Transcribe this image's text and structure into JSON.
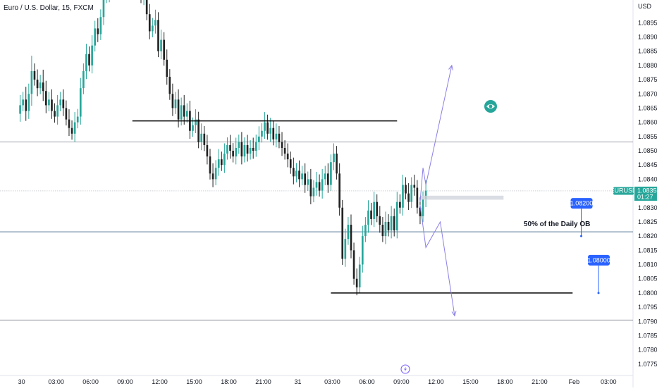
{
  "chart_title": "Euro / U.S. Dollar, 15, FXCM",
  "currency_label": "USD",
  "colors": {
    "up": "#26a69a",
    "down": "#222222",
    "arrow": "#8a7fe6",
    "accent": "#2962ff",
    "grid_line": "#787b86",
    "ticker_bg": "#26a69a",
    "eye": "#26a69a"
  },
  "icons": {
    "watch": "eye-icon",
    "bottom": "lightning-icon"
  },
  "chart_data": {
    "type": "candlestick",
    "title": "Euro / U.S. Dollar, 15, FXCM",
    "ylim": [
      1.0771,
      1.0903
    ],
    "y_ticks": [
      "1.08950",
      "1.08900",
      "1.08850",
      "1.08800",
      "1.08750",
      "1.08700",
      "1.08650",
      "1.08600",
      "1.08550",
      "1.08500",
      "1.08450",
      "1.08400",
      "1.08350",
      "1.08300",
      "1.08250",
      "1.08200",
      "1.08150",
      "1.08100",
      "1.08050",
      "1.08000",
      "1.07950",
      "1.07900",
      "1.07850",
      "1.07800",
      "1.07750"
    ],
    "x_ticks": [
      "30",
      "03:00",
      "06:00",
      "09:00",
      "12:00",
      "15:00",
      "18:00",
      "21:00",
      "31",
      "03:00",
      "06:00",
      "09:00",
      "12:00",
      "15:00",
      "18:00",
      "21:00",
      "Feb",
      "03:00"
    ],
    "x_tick_pos": [
      0.5,
      12.5,
      24.5,
      36.5,
      48.5,
      60.5,
      72.5,
      84.5,
      96.5,
      108.5,
      120.5,
      132.5,
      144.5,
      156.5,
      168.5,
      180.5,
      192.5,
      204.5
    ],
    "x_range": [
      -7,
      213
    ],
    "closes": [
      1.0866,
      1.0868,
      1.0864,
      1.087,
      1.0878,
      1.0875,
      1.0872,
      1.0874,
      1.0871,
      1.0866,
      1.0868,
      1.0864,
      1.0862,
      1.0866,
      1.0868,
      1.0865,
      1.0861,
      1.0858,
      1.0856,
      1.086,
      1.0862,
      1.0872,
      1.0878,
      1.0884,
      1.088,
      1.0887,
      1.0893,
      1.0891,
      1.0897,
      1.0904,
      1.0905,
      1.0908,
      1.0906,
      1.091,
      1.0915,
      1.092,
      1.0916,
      1.0913,
      1.0914,
      1.0911,
      1.0908,
      1.091,
      1.0904,
      1.0907,
      1.0898,
      1.0892,
      1.0894,
      1.0896,
      1.0885,
      1.0889,
      1.0882,
      1.0876,
      1.087,
      1.0865,
      1.0868,
      1.0861,
      1.0866,
      1.0862,
      1.0864,
      1.0857,
      1.0859,
      1.0861,
      1.0853,
      1.0856,
      1.0852,
      1.0848,
      1.0842,
      1.084,
      1.0844,
      1.0847,
      1.0845,
      1.0849,
      1.0852,
      1.085,
      1.0848,
      1.0851,
      1.0853,
      1.0848,
      1.0852,
      1.0849,
      1.0851,
      1.085,
      1.0853,
      1.0855,
      1.0857,
      1.086,
      1.0856,
      1.0858,
      1.0854,
      1.0856,
      1.0853,
      1.0851,
      1.0849,
      1.0847,
      1.0844,
      1.0841,
      1.0843,
      1.084,
      1.0842,
      1.0838,
      1.084,
      1.0834,
      1.0837,
      1.0839,
      1.0836,
      1.084,
      1.0842,
      1.0838,
      1.0846,
      1.0849,
      1.0842,
      1.083,
      1.0812,
      1.0819,
      1.0824,
      1.0815,
      1.0805,
      1.0802,
      1.081,
      1.082,
      1.0824,
      1.0829,
      1.0826,
      1.0832,
      1.0827,
      1.0824,
      1.082,
      1.0825,
      1.0822,
      1.0827,
      1.0822,
      1.0832,
      1.083,
      1.0838,
      1.0835,
      1.0832,
      1.0838,
      1.0837,
      1.083,
      1.0827,
      1.0833,
      1.0836
    ],
    "highs_extra": [
      0.0004,
      0.0003,
      0.0005,
      0.0004,
      0.0006,
      0.0003,
      0.0004,
      0.0003,
      0.0005,
      0.0004,
      0.0003,
      0.0004,
      0.0003,
      0.0004,
      0.0003,
      0.0004,
      0.0003,
      0.0004,
      0.0003,
      0.0004,
      0.0003,
      0.0004,
      0.0003,
      0.0004,
      0.0003,
      0.0004,
      0.0003,
      0.0004,
      0.0003,
      0.0004,
      0.0003,
      0.0004,
      0.0003,
      0.0004,
      0.0003,
      0.0004,
      0.0003,
      0.0004,
      0.0003,
      0.0004,
      0.0003,
      0.0004,
      0.0003,
      0.0004,
      0.0003,
      0.0004,
      0.0003,
      0.0004,
      0.0003,
      0.0004,
      0.0003,
      0.0004,
      0.0003,
      0.0004,
      0.0003,
      0.0004,
      0.0003,
      0.0004,
      0.0003,
      0.0004,
      0.0003,
      0.0004,
      0.0003,
      0.0004,
      0.0003,
      0.0004,
      0.0003,
      0.0004,
      0.0003,
      0.0004,
      0.0003,
      0.0004,
      0.0003,
      0.0004,
      0.0003,
      0.0004,
      0.0003,
      0.0004,
      0.0003,
      0.0004,
      0.0003,
      0.0004,
      0.0003,
      0.0004,
      0.0003,
      0.0004,
      0.0003,
      0.0004,
      0.0003,
      0.0004,
      0.0003,
      0.0004,
      0.0003,
      0.0004,
      0.0003,
      0.0004,
      0.0003,
      0.0004,
      0.0003,
      0.0004,
      0.0003,
      0.0004,
      0.0003,
      0.0004,
      0.0003,
      0.0004,
      0.0003,
      0.0004,
      0.0003,
      0.0004,
      0.0003,
      0.0004,
      0.0003,
      0.0004,
      0.0003,
      0.0004,
      0.0003,
      0.0004,
      0.0003,
      0.0004,
      0.0003,
      0.0004,
      0.0003,
      0.0004,
      0.0003,
      0.0004,
      0.0003,
      0.0004,
      0.0003,
      0.0004,
      0.0003,
      0.0004,
      0.0003,
      0.0004,
      0.0003,
      0.0004,
      0.0003,
      0.0004,
      0.0003,
      0.0004,
      0.0003,
      0.0004
    ],
    "first_open": 1.0863,
    "annotations": {
      "level_top": {
        "price": 1.08605,
        "x_start": 39,
        "x_end": 131
      },
      "level_bottom": {
        "price": 1.08,
        "x_start": 108,
        "x_end": 192
      },
      "hline_upper": {
        "price": 1.08531
      },
      "hline_current": {
        "price": 1.08359
      },
      "hline_mid": {
        "price": 1.08215
      },
      "hline_low": {
        "price": 1.07905
      },
      "zone": {
        "y1": 1.08342,
        "y2": 1.08328,
        "x_start": 139,
        "x_end": 168
      },
      "ob_label": "50% of the Daily OB",
      "ob_label_price": 1.08235,
      "ob_label_x": 175,
      "target_up": {
        "price": 1.082,
        "x": 195,
        "label": "1.08200"
      },
      "target_down": {
        "price": 1.08,
        "x": 201,
        "label": "1.08000"
      }
    },
    "current_price": {
      "symbol": "EURUSD",
      "price": "1.08359",
      "countdown": "01:27"
    },
    "projections": {
      "up_path": [
        [
          139,
          1.0832
        ],
        [
          140,
          1.0844
        ],
        [
          141,
          1.0838
        ],
        [
          150,
          1.088
        ]
      ],
      "down_path": [
        [
          139,
          1.0831
        ],
        [
          141,
          1.0816
        ],
        [
          146,
          1.0825
        ],
        [
          151,
          1.0792
        ]
      ]
    }
  }
}
